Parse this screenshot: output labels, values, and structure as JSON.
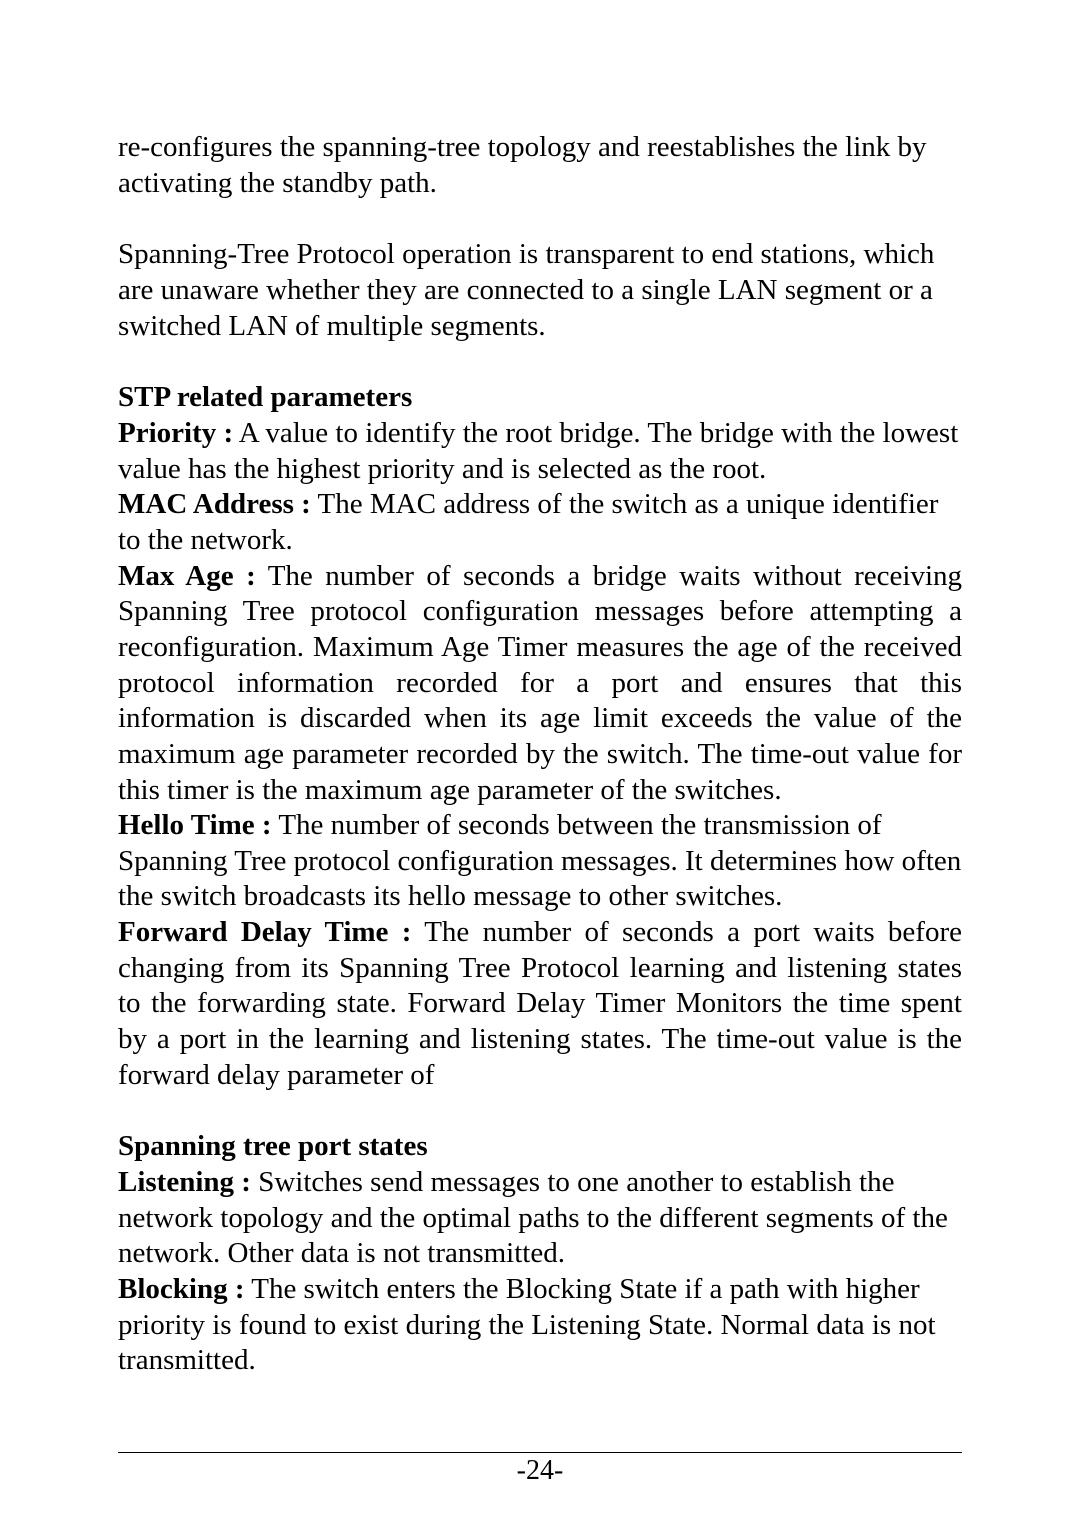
{
  "paragraph1": {
    "text": "re-configures the spanning-tree topology and reestablishes the link by activating the standby path."
  },
  "paragraph2": {
    "text": "Spanning-Tree Protocol operation is transparent to end stations, which are unaware whether they are connected to a single LAN segment or a switched LAN of multiple segments."
  },
  "stp_section": {
    "heading": "STP related parameters",
    "priority_label": "Priority :",
    "priority_text": " A value to identify the root bridge. The bridge with the lowest value has the highest priority and is selected as the root.",
    "mac_label": "MAC Address :",
    "mac_text": " The MAC address of the switch as a unique identifier to the network.",
    "maxage_label": "Max Age :",
    "maxage_text": " The number of seconds a bridge waits without receiving Spanning Tree protocol configuration messages before attempting a reconfiguration. Maximum Age Timer measures the age of the received protocol information recorded for a port and ensures that this information is discarded when its age limit exceeds the value of the maximum age parameter recorded by the switch. The time-out value for this timer is the maximum age parameter of the switches.",
    "hello_label": "Hello Time :",
    "hello_text": " The number of seconds between the transmission of Spanning Tree protocol configuration messages. It determines how often the switch broadcasts its hello message to other switches.",
    "fdt_label": "Forward Delay Time :",
    "fdt_text": " The number of seconds a port waits before changing from its Spanning Tree Protocol learning and listening states to the forwarding state. Forward Delay Timer Monitors the time spent by a port in the learning and listening states. The time-out value is the forward delay parameter of"
  },
  "states_section": {
    "heading": "Spanning tree port states",
    "listening_label": "Listening :",
    "listening_text": " Switches send messages to one another to establish the network topology and the optimal paths to the different segments of the network. Other data is not transmitted.",
    "blocking_label": "Blocking :",
    "blocking_text": " The switch enters the Blocking State if a path with higher priority is found to exist during the Listening State. Normal data is not transmitted."
  },
  "page_number": "-24-"
}
